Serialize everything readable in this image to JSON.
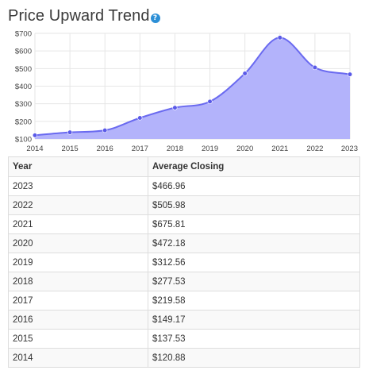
{
  "header": {
    "title": "Price Upward Trend",
    "help_icon": "question-icon",
    "help_glyph": "?"
  },
  "colors": {
    "area_fill": "#b3b3fb",
    "line": "#6a6af0",
    "point": "#5a5ae8",
    "grid": "#e6e6e6",
    "help_icon": "#2c8fd6"
  },
  "chart_data": {
    "type": "area",
    "x": [
      2014,
      2015,
      2016,
      2017,
      2018,
      2019,
      2020,
      2021,
      2022,
      2023
    ],
    "series": [
      {
        "values": [
          120.88,
          137.53,
          149.17,
          219.58,
          277.53,
          312.56,
          472.18,
          675.81,
          505.98,
          466.96
        ]
      }
    ],
    "y_tick_labels": [
      "$100",
      "$200",
      "$300",
      "$400",
      "$500",
      "$600",
      "$700"
    ],
    "y_ticks": [
      100,
      200,
      300,
      400,
      500,
      600,
      700
    ],
    "x_tick_labels": [
      "2014",
      "2015",
      "2016",
      "2017",
      "2018",
      "2019",
      "2020",
      "2021",
      "2022",
      "2023"
    ],
    "ylim": [
      100,
      700
    ],
    "xlim": [
      2014,
      2023
    ],
    "grid": true,
    "legend": "none",
    "smooth": true
  },
  "table": {
    "headers": [
      "Year",
      "Average Closing"
    ],
    "rows": [
      [
        "2023",
        "$466.96"
      ],
      [
        "2022",
        "$505.98"
      ],
      [
        "2021",
        "$675.81"
      ],
      [
        "2020",
        "$472.18"
      ],
      [
        "2019",
        "$312.56"
      ],
      [
        "2018",
        "$277.53"
      ],
      [
        "2017",
        "$219.58"
      ],
      [
        "2016",
        "$149.17"
      ],
      [
        "2015",
        "$137.53"
      ],
      [
        "2014",
        "$120.88"
      ]
    ]
  }
}
